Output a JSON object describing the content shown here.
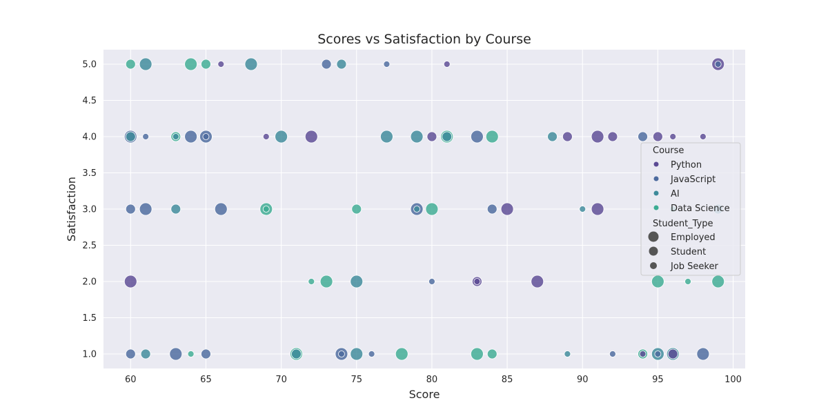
{
  "chart_data": {
    "type": "scatter",
    "title": "Scores vs Satisfaction by Course",
    "xlabel": "Score",
    "ylabel": "Satisfaction",
    "xlim": [
      58.2,
      100.8
    ],
    "ylim": [
      0.8,
      5.2
    ],
    "xticks": [
      "60",
      "65",
      "70",
      "75",
      "80",
      "85",
      "90",
      "95",
      "100"
    ],
    "yticks": [
      "1.0",
      "1.5",
      "2.0",
      "2.5",
      "3.0",
      "3.5",
      "4.0",
      "4.5",
      "5.0"
    ],
    "grid": true,
    "legend_position": "right",
    "legend": {
      "hue_title": "Course",
      "size_title": "Student_Type",
      "courses": [
        {
          "label": "Python",
          "color": "#5b4a94"
        },
        {
          "label": "JavaScript",
          "color": "#4c6a9e"
        },
        {
          "label": "AI",
          "color": "#3d8a9a"
        },
        {
          "label": "Data Science",
          "color": "#3dac93"
        }
      ],
      "student_types": [
        {
          "label": "Employed"
        },
        {
          "label": "Student"
        },
        {
          "label": "Job Seeker"
        }
      ]
    },
    "points": [
      {
        "x": 60,
        "y": 5,
        "course": "Data Science",
        "type": "Student"
      },
      {
        "x": 61,
        "y": 5,
        "course": "AI",
        "type": "Employed"
      },
      {
        "x": 64,
        "y": 5,
        "course": "Data Science",
        "type": "Employed"
      },
      {
        "x": 65,
        "y": 5,
        "course": "Data Science",
        "type": "Student"
      },
      {
        "x": 66,
        "y": 5,
        "course": "Python",
        "type": "Job Seeker"
      },
      {
        "x": 68,
        "y": 5,
        "course": "AI",
        "type": "Employed"
      },
      {
        "x": 73,
        "y": 5,
        "course": "JavaScript",
        "type": "Student"
      },
      {
        "x": 74,
        "y": 5,
        "course": "AI",
        "type": "Student"
      },
      {
        "x": 77,
        "y": 5,
        "course": "JavaScript",
        "type": "Job Seeker"
      },
      {
        "x": 81,
        "y": 5,
        "course": "Python",
        "type": "Job Seeker"
      },
      {
        "x": 99,
        "y": 5,
        "course": "Python",
        "type": "Employed"
      },
      {
        "x": 99,
        "y": 5,
        "course": "JavaScript",
        "type": "Job Seeker"
      },
      {
        "x": 60,
        "y": 4,
        "course": "JavaScript",
        "type": "Employed"
      },
      {
        "x": 60,
        "y": 4,
        "course": "AI",
        "type": "Student"
      },
      {
        "x": 61,
        "y": 4,
        "course": "JavaScript",
        "type": "Job Seeker"
      },
      {
        "x": 63,
        "y": 4,
        "course": "Data Science",
        "type": "Student"
      },
      {
        "x": 63,
        "y": 4,
        "course": "AI",
        "type": "Job Seeker"
      },
      {
        "x": 64,
        "y": 4,
        "course": "JavaScript",
        "type": "Employed"
      },
      {
        "x": 65,
        "y": 4,
        "course": "JavaScript",
        "type": "Employed"
      },
      {
        "x": 65,
        "y": 4,
        "course": "JavaScript",
        "type": "Job Seeker"
      },
      {
        "x": 69,
        "y": 4,
        "course": "Python",
        "type": "Job Seeker"
      },
      {
        "x": 70,
        "y": 4,
        "course": "AI",
        "type": "Employed"
      },
      {
        "x": 72,
        "y": 4,
        "course": "Python",
        "type": "Employed"
      },
      {
        "x": 77,
        "y": 4,
        "course": "AI",
        "type": "Employed"
      },
      {
        "x": 79,
        "y": 4,
        "course": "AI",
        "type": "Employed"
      },
      {
        "x": 80,
        "y": 4,
        "course": "Python",
        "type": "Student"
      },
      {
        "x": 81,
        "y": 4,
        "course": "Data Science",
        "type": "Employed"
      },
      {
        "x": 81,
        "y": 4,
        "course": "AI",
        "type": "Student"
      },
      {
        "x": 83,
        "y": 4,
        "course": "JavaScript",
        "type": "Employed"
      },
      {
        "x": 84,
        "y": 4,
        "course": "Data Science",
        "type": "Employed"
      },
      {
        "x": 88,
        "y": 4,
        "course": "AI",
        "type": "Student"
      },
      {
        "x": 89,
        "y": 4,
        "course": "Python",
        "type": "Student"
      },
      {
        "x": 91,
        "y": 4,
        "course": "Python",
        "type": "Employed"
      },
      {
        "x": 92,
        "y": 4,
        "course": "Python",
        "type": "Student"
      },
      {
        "x": 94,
        "y": 4,
        "course": "JavaScript",
        "type": "Student"
      },
      {
        "x": 95,
        "y": 4,
        "course": "Python",
        "type": "Student"
      },
      {
        "x": 96,
        "y": 4,
        "course": "Python",
        "type": "Job Seeker"
      },
      {
        "x": 98,
        "y": 4,
        "course": "Python",
        "type": "Job Seeker"
      },
      {
        "x": 60,
        "y": 3,
        "course": "JavaScript",
        "type": "Student"
      },
      {
        "x": 61,
        "y": 3,
        "course": "JavaScript",
        "type": "Employed"
      },
      {
        "x": 63,
        "y": 3,
        "course": "AI",
        "type": "Student"
      },
      {
        "x": 66,
        "y": 3,
        "course": "JavaScript",
        "type": "Employed"
      },
      {
        "x": 69,
        "y": 3,
        "course": "Data Science",
        "type": "Employed"
      },
      {
        "x": 69,
        "y": 3,
        "course": "Data Science",
        "type": "Job Seeker"
      },
      {
        "x": 75,
        "y": 3,
        "course": "Data Science",
        "type": "Student"
      },
      {
        "x": 79,
        "y": 3,
        "course": "JavaScript",
        "type": "Employed"
      },
      {
        "x": 79,
        "y": 3,
        "course": "AI",
        "type": "Job Seeker"
      },
      {
        "x": 80,
        "y": 3,
        "course": "Data Science",
        "type": "Employed"
      },
      {
        "x": 84,
        "y": 3,
        "course": "JavaScript",
        "type": "Student"
      },
      {
        "x": 85,
        "y": 3,
        "course": "Python",
        "type": "Employed"
      },
      {
        "x": 90,
        "y": 3,
        "course": "AI",
        "type": "Job Seeker"
      },
      {
        "x": 91,
        "y": 3,
        "course": "Python",
        "type": "Employed"
      },
      {
        "x": 96,
        "y": 3,
        "course": "Data Science",
        "type": "Job Seeker"
      },
      {
        "x": 99,
        "y": 3,
        "course": "AI",
        "type": "Student"
      },
      {
        "x": 60,
        "y": 2,
        "course": "Python",
        "type": "Employed"
      },
      {
        "x": 72,
        "y": 2,
        "course": "Data Science",
        "type": "Job Seeker"
      },
      {
        "x": 73,
        "y": 2,
        "course": "Data Science",
        "type": "Employed"
      },
      {
        "x": 75,
        "y": 2,
        "course": "AI",
        "type": "Employed"
      },
      {
        "x": 80,
        "y": 2,
        "course": "JavaScript",
        "type": "Job Seeker"
      },
      {
        "x": 83,
        "y": 2,
        "course": "Python",
        "type": "Student"
      },
      {
        "x": 83,
        "y": 2,
        "course": "Python",
        "type": "Job Seeker"
      },
      {
        "x": 87,
        "y": 2,
        "course": "Python",
        "type": "Employed"
      },
      {
        "x": 95,
        "y": 2,
        "course": "Data Science",
        "type": "Employed"
      },
      {
        "x": 97,
        "y": 2,
        "course": "Data Science",
        "type": "Job Seeker"
      },
      {
        "x": 99,
        "y": 2,
        "course": "Data Science",
        "type": "Employed"
      },
      {
        "x": 60,
        "y": 1,
        "course": "JavaScript",
        "type": "Student"
      },
      {
        "x": 61,
        "y": 1,
        "course": "AI",
        "type": "Student"
      },
      {
        "x": 63,
        "y": 1,
        "course": "JavaScript",
        "type": "Employed"
      },
      {
        "x": 64,
        "y": 1,
        "course": "Data Science",
        "type": "Job Seeker"
      },
      {
        "x": 65,
        "y": 1,
        "course": "JavaScript",
        "type": "Student"
      },
      {
        "x": 71,
        "y": 1,
        "course": "Data Science",
        "type": "Employed"
      },
      {
        "x": 71,
        "y": 1,
        "course": "AI",
        "type": "Student"
      },
      {
        "x": 74,
        "y": 1,
        "course": "JavaScript",
        "type": "Employed"
      },
      {
        "x": 74,
        "y": 1,
        "course": "JavaScript",
        "type": "Job Seeker"
      },
      {
        "x": 75,
        "y": 1,
        "course": "AI",
        "type": "Employed"
      },
      {
        "x": 76,
        "y": 1,
        "course": "JavaScript",
        "type": "Job Seeker"
      },
      {
        "x": 78,
        "y": 1,
        "course": "Data Science",
        "type": "Employed"
      },
      {
        "x": 83,
        "y": 1,
        "course": "Data Science",
        "type": "Employed"
      },
      {
        "x": 84,
        "y": 1,
        "course": "Data Science",
        "type": "Student"
      },
      {
        "x": 89,
        "y": 1,
        "course": "AI",
        "type": "Job Seeker"
      },
      {
        "x": 92,
        "y": 1,
        "course": "JavaScript",
        "type": "Job Seeker"
      },
      {
        "x": 94,
        "y": 1,
        "course": "Data Science",
        "type": "Student"
      },
      {
        "x": 94,
        "y": 1,
        "course": "Python",
        "type": "Job Seeker"
      },
      {
        "x": 95,
        "y": 1,
        "course": "AI",
        "type": "Employed"
      },
      {
        "x": 95,
        "y": 1,
        "course": "JavaScript",
        "type": "Job Seeker"
      },
      {
        "x": 96,
        "y": 1,
        "course": "AI",
        "type": "Employed"
      },
      {
        "x": 96,
        "y": 1,
        "course": "Python",
        "type": "Student"
      },
      {
        "x": 98,
        "y": 1,
        "course": "JavaScript",
        "type": "Employed"
      }
    ]
  }
}
